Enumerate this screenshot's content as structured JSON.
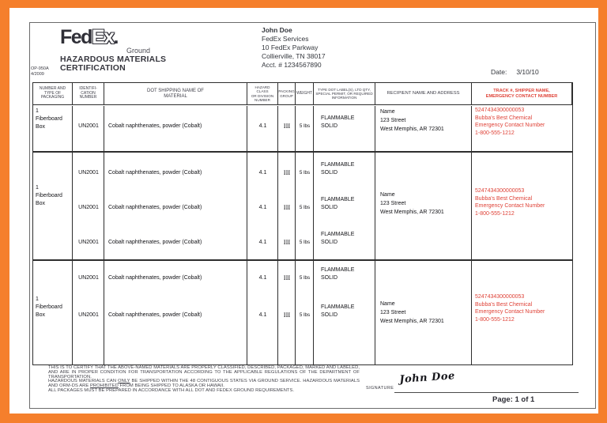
{
  "header": {
    "logo_fed": "Fed",
    "logo_ex": "Ex",
    "logo_dot": ".",
    "logo_sub": "Ground",
    "form_code": "OP-950A",
    "form_rev": "4/2009",
    "title_line1": "HAZARDOUS MATERIALS",
    "title_line2": "CERTIFICATION",
    "shipper_lines": [
      "John Doe",
      "FedEx Services",
      "10 FedEx Parkway",
      "Collierville, TN 38017",
      "Acct. # 1234567890"
    ],
    "date_label": "Date:",
    "date_value": "3/10/10"
  },
  "table": {
    "headers": [
      {
        "lines": [
          "NUMBER AND",
          "TYPE OF",
          "PACKAGING"
        ]
      },
      {
        "lines": [
          "IDENTIFI-",
          "CATION",
          "NUMBER"
        ]
      },
      {
        "lines": [
          "DOT SHIPPING NAME OF",
          "MATERIAL"
        ]
      },
      {
        "lines": [
          "HAZARD",
          "CLASS",
          "OR DIVISION",
          "NUMBER"
        ]
      },
      {
        "lines": [
          "PACKING",
          "GROUP"
        ]
      },
      {
        "lines": [
          "WEIGHT"
        ]
      },
      {
        "lines": [
          "TYPE DOT LABEL(S), LTD QTY,",
          "SPECIAL PERMIT, OR REQUIRED",
          "INFORMATION"
        ]
      },
      {
        "lines": [
          "RECIPIENT NAME AND ADDRESS"
        ]
      },
      {
        "lines": [
          "TRACK #, SHIPPER NAME,",
          "EMERGENCY CONTACT NUMBER"
        ],
        "red": true
      }
    ],
    "groups": [
      {
        "packaging": [
          "1",
          "Fiberboard",
          "Box"
        ],
        "recipient": [
          "Name",
          "123 Street",
          "West Memphis, AR 72301"
        ],
        "tracking": [
          "5247434300000053",
          "Bubba's Best Chemical",
          "Emergency Contact Number",
          "1-800-555-1212"
        ],
        "lines": [
          {
            "id": "UN2001",
            "material": "Cobalt naphthenates, powder (Cobalt)",
            "hazard_class": "4.1",
            "packing_group": "III",
            "weight": "5 lbs",
            "dot_label": [
              "FLAMMABLE",
              "SOLID"
            ]
          }
        ]
      },
      {
        "packaging": [
          "1",
          "Fiberboard",
          "Box"
        ],
        "recipient": [
          "Name",
          "123 Street",
          "West Memphis, AR 72301"
        ],
        "tracking": [
          "5247434300000053",
          "Bubba's Best Chemical",
          "Emergency Contact Number",
          "1-800-555-1212"
        ],
        "lines": [
          {
            "id": "UN2001",
            "material": "Cobalt naphthenates, powder (Cobalt)",
            "hazard_class": "4.1",
            "packing_group": "III",
            "weight": "5 lbs",
            "dot_label": [
              "FLAMMABLE",
              "SOLID"
            ]
          },
          {
            "id": "UN2001",
            "material": "Cobalt naphthenates, powder (Cobalt)",
            "hazard_class": "4.1",
            "packing_group": "III",
            "weight": "5 lbs",
            "dot_label": [
              "FLAMMABLE",
              "SOLID"
            ]
          },
          {
            "id": "UN2001",
            "material": "Cobalt naphthenates, powder (Cobalt)",
            "hazard_class": "4.1",
            "packing_group": "III",
            "weight": "5 lbs",
            "dot_label": [
              "FLAMMABLE",
              "SOLID"
            ]
          }
        ]
      },
      {
        "packaging": [
          "1",
          "Fiberboard",
          "Box"
        ],
        "recipient": [
          "Name",
          "123 Street",
          "West Memphis, AR 72301"
        ],
        "tracking": [
          "5247434300000053",
          "Bubba's Best Chemical",
          "Emergency Contact Number",
          "1-800-555-1212"
        ],
        "lines": [
          {
            "id": "UN2001",
            "material": "Cobalt naphthenates, powder (Cobalt)",
            "hazard_class": "4.1",
            "packing_group": "III",
            "weight": "5 lbs",
            "dot_label": [
              "FLAMMABLE",
              "SOLID"
            ]
          },
          {
            "id": "UN2001",
            "material": "Cobalt naphthenates, powder (Cobalt)",
            "hazard_class": "4.1",
            "packing_group": "III",
            "weight": "5 lbs",
            "dot_label": [
              "FLAMMABLE",
              "SOLID"
            ]
          }
        ]
      }
    ]
  },
  "footer": {
    "certification": [
      [
        {
          "t": "THIS IS TO CERTIFY THAT THE ABOVE-NAMED MATERIALS ARE PROPERLY CLASSIFIED, DESCRIBED, PACKAGED, MARKED AND LABELED, AND ARE IN PROPER CONDITION FOR TRANSPORTATION ACCORDING TO THE APPLICABLE REGULATIONS OF THE DEPARTMENT OF TRANSPORTATION."
        }
      ],
      [
        {
          "t": "HAZARDOUS MATERIALS CAN "
        },
        {
          "t": "ONLY",
          "u": true
        },
        {
          "t": " BE SHIPPED WITHIN THE 48 CONTIGUOUS STATES VIA GROUND SERVICE. HAZARDOUS MATERIALS AND ORM-DS ARE "
        },
        {
          "t": "PROHIBITED",
          "u": true
        },
        {
          "t": " FROM BEING SHIPPED TO ALASKA OR HAWAII."
        }
      ],
      [
        {
          "t": "ALL PACKAGES MUST BE PREPARED IN ACCORDANCE WITH ALL DOT AND FEDEX GROUND REQUIREMENTS."
        }
      ]
    ],
    "signature_label": "SIGNATURE",
    "signature_value": "John Doe",
    "page_label": "Page: 1 of 1"
  }
}
